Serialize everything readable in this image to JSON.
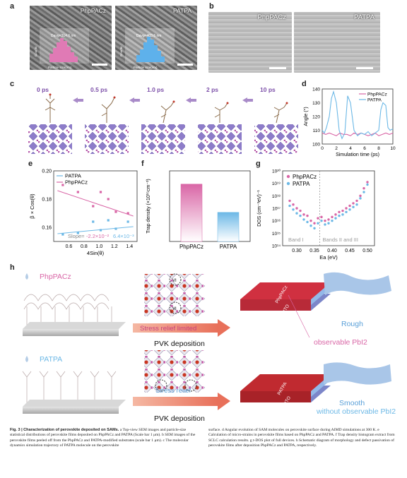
{
  "panels": {
    "a": {
      "label": "a",
      "left_title": "PhpPACz",
      "right_title": "PATPA",
      "left_avg": "Davg=314.6 nm",
      "right_avg": "Davg=403.6 nm",
      "ylabel": "Counts",
      "xlabel": "Particle size(nm)",
      "xticks": [
        "200",
        "400",
        "600"
      ]
    },
    "b": {
      "label": "b",
      "left_title": "PhpPACz",
      "right_title": "PATPA"
    },
    "c": {
      "label": "c",
      "times": [
        "0 ps",
        "0.5 ps",
        "1.0 ps",
        "2 ps",
        "10 ps"
      ]
    },
    "d": {
      "label": "d"
    },
    "e": {
      "label": "e"
    },
    "f": {
      "label": "f"
    },
    "g": {
      "label": "g"
    },
    "h": {
      "label": "h",
      "top_molecule": "PhpPACz",
      "bottom_molecule": "PATPA",
      "top_arrow": "Stress relief limited",
      "bottom_arrow": "Stress relief",
      "deposition": "PVK deposition",
      "top_stack": "PhpPACz",
      "bottom_stack": "PATPA",
      "ito": "ITO",
      "top_result": "Rough",
      "bottom_result": "Smooth",
      "top_pbi": "observable PbI2",
      "bottom_pbi": "without observable PbI2",
      "vi": "VI"
    }
  },
  "chart_data": [
    {
      "type": "line",
      "panel": "d",
      "xlabel": "Simulation time (ps)",
      "ylabel": "Angle (°)",
      "xlim": [
        0,
        10
      ],
      "ylim": [
        100,
        140
      ],
      "xticks": [
        "0",
        "2",
        "4",
        "6",
        "8",
        "10"
      ],
      "yticks": [
        "100",
        "110",
        "120",
        "130",
        "140"
      ],
      "legend": "top-right",
      "series": [
        {
          "name": "PhpPACz",
          "color": "#d966a6",
          "x": [
            0,
            0.5,
            1,
            1.5,
            2,
            2.5,
            3,
            3.5,
            4,
            4.5,
            5,
            5.5,
            6,
            6.5,
            7,
            7.5,
            8,
            8.5,
            9,
            9.5,
            10
          ],
          "y": [
            108,
            107,
            108,
            107,
            106,
            108,
            107,
            107,
            106,
            108,
            107,
            108,
            107,
            106,
            107,
            108,
            106,
            107,
            108,
            107,
            108
          ]
        },
        {
          "name": "PATPA",
          "color": "#6cb8e6",
          "x": [
            0,
            0.3,
            0.6,
            1,
            1.3,
            1.6,
            2,
            2.4,
            2.8,
            3.2,
            3.6,
            4,
            4.5,
            5,
            5.5,
            6,
            6.5,
            7,
            7.5,
            8,
            8.3,
            8.6,
            9,
            9.3,
            9.6,
            10
          ],
          "y": [
            110,
            108,
            112,
            120,
            133,
            138,
            130,
            110,
            104,
            108,
            135,
            130,
            110,
            106,
            108,
            107,
            109,
            106,
            108,
            110,
            125,
            130,
            128,
            112,
            110,
            111
          ]
        }
      ]
    },
    {
      "type": "scatter",
      "panel": "e",
      "xlabel": "4Sin(θ)",
      "ylabel": "β × Cos(θ)",
      "xlim": [
        0.4,
        1.5
      ],
      "ylim": [
        0.15,
        0.2
      ],
      "xticks": [
        "0.6",
        "0.8",
        "1.0",
        "1.2",
        "1.4"
      ],
      "yticks": [
        "0.16",
        "0.18",
        "0.20"
      ],
      "legend": "top-left",
      "slope_label": "Slope=",
      "slope_values": [
        "-2.2×10⁻²",
        "6.4×10⁻³"
      ],
      "series": [
        {
          "name": "PATPA",
          "color": "#6cb8e6",
          "x": [
            0.52,
            0.72,
            0.92,
            1.02,
            1.12,
            1.22,
            1.38
          ],
          "y": [
            0.155,
            0.156,
            0.164,
            0.158,
            0.165,
            0.159,
            0.164
          ],
          "fit": [
            [
              0.45,
              0.1555
            ],
            [
              1.45,
              0.1605
            ]
          ]
        },
        {
          "name": "PhpPACz",
          "color": "#d966a6",
          "x": [
            0.52,
            0.72,
            0.92,
            1.02,
            1.12,
            1.22,
            1.38
          ],
          "y": [
            0.19,
            0.185,
            0.175,
            0.185,
            0.18,
            0.171,
            0.17
          ],
          "fit": [
            [
              0.45,
              0.186
            ],
            [
              1.45,
              0.168
            ]
          ]
        }
      ]
    },
    {
      "type": "bar",
      "panel": "f",
      "ylabel": "Trap density (×10¹⁵cm⁻³)",
      "categories": [
        "PhpPACz",
        "PATPA"
      ],
      "values": [
        6.5,
        3.3
      ],
      "ylim": [
        0,
        8
      ],
      "colors": [
        "#d966a6",
        "#6cb8e6"
      ]
    },
    {
      "type": "scatter",
      "panel": "g",
      "xlabel": "Ea (eV)",
      "ylabel": "DOS (cm⁻³eV)⁻¹",
      "xlim": [
        0.26,
        0.52
      ],
      "ylog": [
        14,
        20
      ],
      "xticks": [
        "0.30",
        "0.35",
        "0.40",
        "0.45",
        "0.50"
      ],
      "yticks": [
        "10¹⁴",
        "10¹⁵",
        "10¹⁶",
        "10¹⁷",
        "10¹⁸",
        "10¹⁹",
        "10²⁰"
      ],
      "legend": "top-left",
      "band_labels": [
        "Band I",
        "Bands II and III"
      ],
      "series": [
        {
          "name": "PhpPACz",
          "color": "#d966a6",
          "x": [
            0.28,
            0.29,
            0.3,
            0.31,
            0.32,
            0.33,
            0.34,
            0.35,
            0.36,
            0.37,
            0.38,
            0.39,
            0.4,
            0.41,
            0.42,
            0.43,
            0.44,
            0.45,
            0.46,
            0.47,
            0.48,
            0.49,
            0.5
          ],
          "logy": [
            17.6,
            17.3,
            17.0,
            16.8,
            16.5,
            16.4,
            16.0,
            15.8,
            16.2,
            16.3,
            16.0,
            16.1,
            16.3,
            16.5,
            16.7,
            16.8,
            17.0,
            17.2,
            17.4,
            17.6,
            18.0,
            18.6,
            19.1
          ]
        },
        {
          "name": "PATPA",
          "color": "#6cb8e6",
          "x": [
            0.28,
            0.29,
            0.3,
            0.31,
            0.32,
            0.33,
            0.34,
            0.35,
            0.36,
            0.37,
            0.38,
            0.39,
            0.4,
            0.41,
            0.42,
            0.43,
            0.44,
            0.45,
            0.46,
            0.47,
            0.48,
            0.49,
            0.5
          ],
          "logy": [
            17.2,
            16.9,
            16.6,
            16.4,
            16.1,
            15.9,
            15.6,
            15.4,
            15.8,
            16.0,
            15.7,
            15.8,
            16.0,
            16.2,
            16.4,
            16.5,
            16.7,
            16.9,
            17.1,
            17.3,
            17.8,
            18.3,
            18.9
          ]
        }
      ]
    }
  ],
  "caption": {
    "fig": "Fig. 3 |",
    "title": "Characterization of perovskite deposited on SAMs.",
    "col1": "a Top-view SEM images and particle-size statistical distributions of perovskite films deposited on PhpPACz and PATPA (Scale bar 1 μm). b SEM images of the perovskite films peeled off from the PhpPACz and PATPA-modified substrates (scale bar 1 μm). c The molecular dynamics simulation trajectory of PATPA molecule on the perovskite",
    "col2": "surface. d Angular evolution of SAM molecules on perovskite surface during AIMD simulations at 300 K. e Calculation of micro-strains in perovskite films based on PhpPACz and PATPA. f Trap density histogram extract from SCLC calculation results. g t-DOS plot of full devices. h Schematic diagram of morphology and defect passivation of perovskite films after deposition PhpPACz and PATPA, respectively."
  }
}
